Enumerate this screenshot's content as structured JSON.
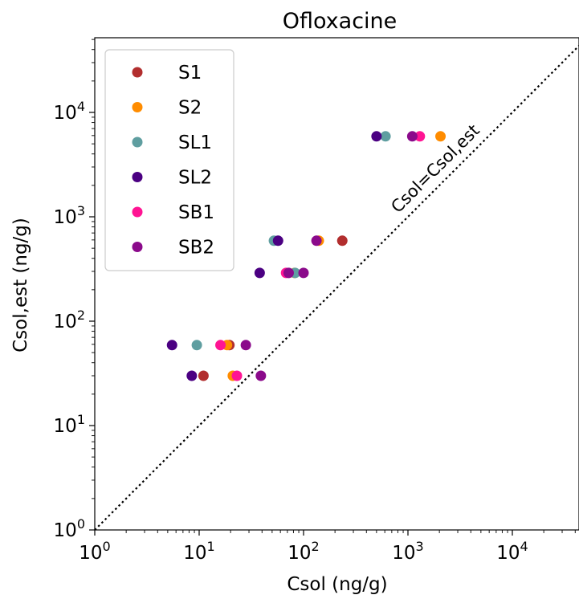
{
  "chart_data": {
    "type": "scatter",
    "title": "Ofloxacine",
    "xlabel": "Csol (ng/g)",
    "ylabel": "Csol,est (ng/g)",
    "xscale": "log",
    "yscale": "log",
    "xlim": [
      1,
      45000
    ],
    "ylim": [
      1,
      45000
    ],
    "xticks": [
      {
        "value": 1,
        "base": "10",
        "exp": "0"
      },
      {
        "value": 10,
        "base": "10",
        "exp": "1"
      },
      {
        "value": 100,
        "base": "10",
        "exp": "2"
      },
      {
        "value": 1000,
        "base": "10",
        "exp": "3"
      },
      {
        "value": 10000,
        "base": "10",
        "exp": "4"
      }
    ],
    "yticks": [
      {
        "value": 1,
        "base": "10",
        "exp": "0"
      },
      {
        "value": 10,
        "base": "10",
        "exp": "1"
      },
      {
        "value": 100,
        "base": "10",
        "exp": "2"
      },
      {
        "value": 1000,
        "base": "10",
        "exp": "3"
      },
      {
        "value": 10000,
        "base": "10",
        "exp": "4"
      }
    ],
    "grid": false,
    "legend_position": "top-left",
    "reference_line": {
      "label": "Csol=Csol,est",
      "style": "dotted",
      "color": "#000000"
    },
    "series": [
      {
        "name": "S1",
        "color": "#b22e2e",
        "points": [
          [
            11,
            30
          ],
          [
            19.5,
            59
          ],
          [
            235,
            590
          ]
        ]
      },
      {
        "name": "S2",
        "color": "#ff8c00",
        "points": [
          [
            21,
            30
          ],
          [
            18.5,
            59
          ],
          [
            82,
            290
          ],
          [
            140,
            590
          ],
          [
            2050,
            5900
          ]
        ]
      },
      {
        "name": "SL1",
        "color": "#5f9ea0",
        "points": [
          [
            9.5,
            59
          ],
          [
            83,
            290
          ],
          [
            52,
            590
          ],
          [
            610,
            5900
          ]
        ]
      },
      {
        "name": "SL2",
        "color": "#4b0082",
        "points": [
          [
            8.5,
            30
          ],
          [
            5.5,
            59
          ],
          [
            38,
            290
          ],
          [
            57,
            590
          ],
          [
            500,
            5900
          ]
        ]
      },
      {
        "name": "SB1",
        "color": "#ff1493",
        "points": [
          [
            23,
            30
          ],
          [
            16,
            59
          ],
          [
            68,
            290
          ],
          [
            1300,
            5900
          ]
        ]
      },
      {
        "name": "SB2",
        "color": "#8b0a8b",
        "points": [
          [
            39,
            30
          ],
          [
            28,
            59
          ],
          [
            72,
            290
          ],
          [
            100,
            290
          ],
          [
            133,
            590
          ],
          [
            1100,
            5900
          ]
        ]
      }
    ]
  }
}
